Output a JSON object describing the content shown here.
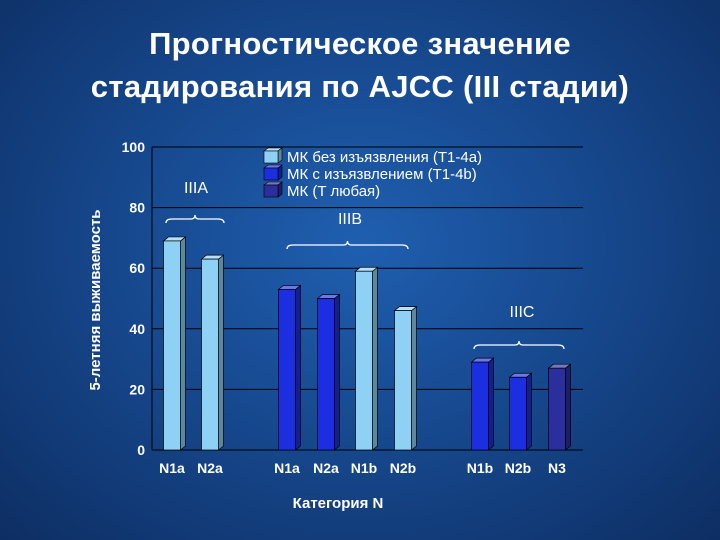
{
  "title_lines": [
    "Прогностическое значение",
    "стадирования по AJCC (III стадии)"
  ],
  "chart_data": {
    "type": "bar",
    "xlabel": "Категория N",
    "ylabel": "5-летняя выживаемость",
    "ylim": [
      0,
      100
    ],
    "yticks": [
      0,
      20,
      40,
      60,
      80,
      100
    ],
    "grid": true,
    "legend_position": "top-center",
    "series": [
      {
        "name": "МК без изъязвления (T1-4a)",
        "color": "#8fd0f5"
      },
      {
        "name": "МК с изъязвлением (T1-4b)",
        "color": "#1b2fe0"
      },
      {
        "name": "МК (T любая)",
        "color": "#2b2f9e"
      }
    ],
    "groups": [
      {
        "label": "IIIA",
        "bars": [
          {
            "category": "N1a",
            "series": 0,
            "value": 69
          },
          {
            "category": "N2a",
            "series": 0,
            "value": 63
          }
        ]
      },
      {
        "label": "IIIB",
        "bars": [
          {
            "category": "N1a",
            "series": 1,
            "value": 53
          },
          {
            "category": "N2a",
            "series": 1,
            "value": 50
          },
          {
            "category": "N1b",
            "series": 0,
            "value": 59
          },
          {
            "category": "N2b",
            "series": 0,
            "value": 46
          }
        ]
      },
      {
        "label": "IIIC",
        "bars": [
          {
            "category": "N1b",
            "series": 1,
            "value": 29
          },
          {
            "category": "N2b",
            "series": 1,
            "value": 24
          },
          {
            "category": "N3",
            "series": 2,
            "value": 27
          }
        ]
      }
    ]
  }
}
